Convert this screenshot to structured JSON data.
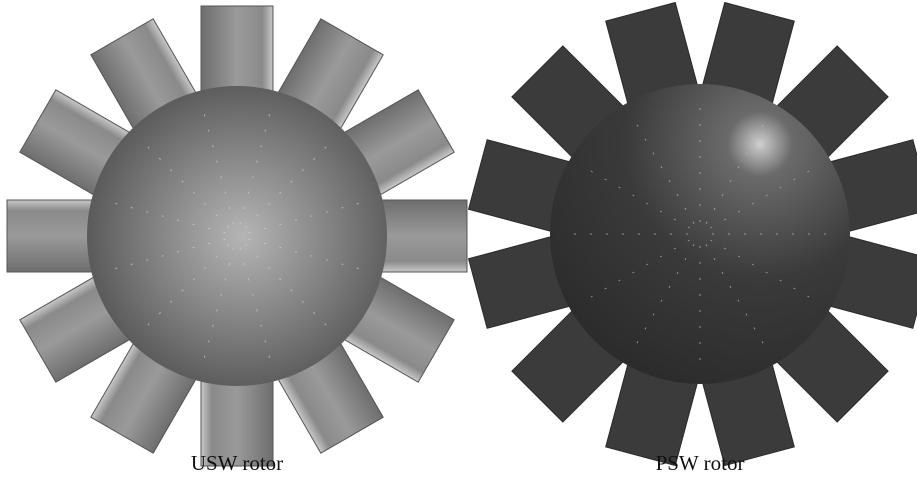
{
  "panels": [
    {
      "caption": "USW rotor"
    },
    {
      "caption": "PSW rotor"
    }
  ]
}
